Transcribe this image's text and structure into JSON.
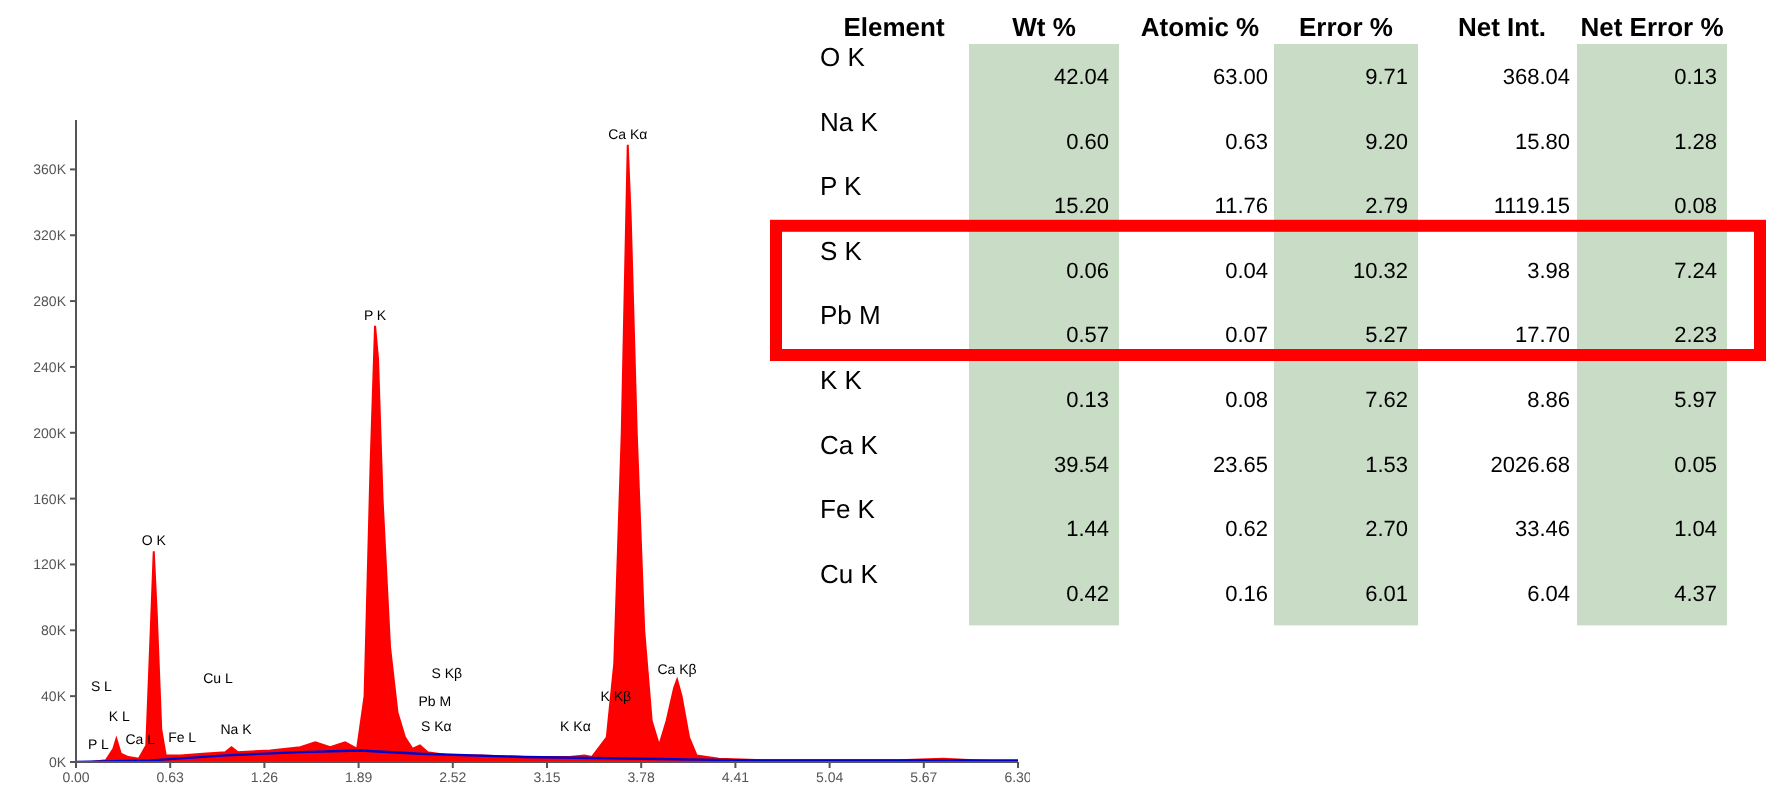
{
  "chart_data": [
    {
      "type": "area",
      "x": [
        0,
        0.1,
        0.2,
        0.25,
        0.27,
        0.3,
        0.35,
        0.42,
        0.47,
        0.5,
        0.52,
        0.54,
        0.57,
        0.6,
        0.7,
        0.85,
        1.0,
        1.04,
        1.08,
        1.3,
        1.5,
        1.6,
        1.7,
        1.8,
        1.88,
        1.93,
        1.97,
        2.0,
        2.02,
        2.05,
        2.1,
        2.15,
        2.2,
        2.25,
        2.3,
        2.35,
        2.5,
        2.7,
        3.0,
        3.3,
        3.4,
        3.45,
        3.55,
        3.6,
        3.65,
        3.69,
        3.71,
        3.75,
        3.8,
        3.85,
        3.9,
        3.95,
        4.0,
        4.02,
        4.05,
        4.1,
        4.15,
        4.3,
        4.6,
        5.0,
        5.5,
        5.8,
        6.0,
        6.3
      ],
      "series": [
        {
          "type": "area",
          "color": "#ff0000",
          "values": [
            0,
            0,
            1000,
            8000,
            14000,
            5000,
            3000,
            2000,
            10000,
            80000,
            128000,
            90000,
            20000,
            4000,
            4000,
            5000,
            6000,
            9000,
            6000,
            7000,
            9000,
            12000,
            9000,
            12000,
            8000,
            40000,
            180000,
            265000,
            245000,
            160000,
            70000,
            30000,
            15000,
            8000,
            10000,
            6000,
            4000,
            4000,
            3000,
            3000,
            4000,
            3000,
            15000,
            60000,
            200000,
            375000,
            330000,
            200000,
            80000,
            25000,
            10000,
            25000,
            45000,
            50000,
            40000,
            15000,
            4000,
            2000,
            1000,
            1000,
            1000,
            2000,
            1000,
            0
          ]
        },
        {
          "type": "line",
          "color": "#0000cc",
          "x": [
            0,
            0.5,
            1.0,
            1.5,
            1.9,
            2.3,
            3.0,
            3.8,
            4.5,
            6.3
          ],
          "values": [
            0,
            1000,
            4000,
            6000,
            7000,
            5000,
            3000,
            2000,
            1000,
            1000
          ]
        }
      ],
      "xlim": [
        0,
        6.3
      ],
      "xticks": [
        {
          "value": 0,
          "label": "0.00"
        },
        {
          "value": 0.63,
          "label": "0.63"
        },
        {
          "value": 1.26,
          "label": "1.26"
        },
        {
          "value": 1.89,
          "label": "1.89"
        },
        {
          "value": 2.52,
          "label": "2.52"
        },
        {
          "value": 3.15,
          "label": "3.15"
        },
        {
          "value": 3.78,
          "label": "3.78"
        },
        {
          "value": 4.41,
          "label": "4.41"
        },
        {
          "value": 5.04,
          "label": "5.04"
        },
        {
          "value": 5.67,
          "label": "5.67"
        },
        {
          "value": 6.3,
          "label": "6.30"
        }
      ],
      "ylim": [
        0,
        390000
      ],
      "yticks": [
        {
          "value": 0,
          "label": "0K"
        },
        {
          "value": 40000,
          "label": "40K"
        },
        {
          "value": 80000,
          "label": "80K"
        },
        {
          "value": 120000,
          "label": "120K"
        },
        {
          "value": 160000,
          "label": "160K"
        },
        {
          "value": 200000,
          "label": "200K"
        },
        {
          "value": 240000,
          "label": "240K"
        },
        {
          "value": 280000,
          "label": "280K"
        },
        {
          "value": 320000,
          "label": "320K"
        },
        {
          "value": 360000,
          "label": "360K"
        }
      ],
      "grid": false,
      "annotations": [
        {
          "text": "O K",
          "x": 0.52,
          "y": 128000
        },
        {
          "text": "P K",
          "x": 2.0,
          "y": 265000
        },
        {
          "text": "Ca Kα",
          "x": 3.69,
          "y": 375000
        },
        {
          "text": "Ca Kβ",
          "x": 4.02,
          "y": 50000
        },
        "S L",
        "K L",
        "P L",
        "Ca L",
        "Fe L",
        "Na K",
        "Cu L",
        "S Kβ",
        "Pb M",
        "S Kα",
        "K Kα",
        "K Kβ"
      ]
    },
    {
      "type": "heatmap",
      "ylabel": "Element",
      "categories": [
        "Wt %",
        "Atomic %",
        "Error %",
        "Net Int.",
        "Net Error %"
      ],
      "y_categories": [
        "O K",
        "Na K",
        "P K",
        "S K",
        "Pb M",
        "K K",
        "Ca K",
        "Fe K",
        "Cu K"
      ],
      "colors": [
        "#c9dcc6",
        "#ffffff",
        "#c9dcc6",
        "#ffffff",
        "#c9dcc6"
      ],
      "cells": [
        [
          42.04,
          63.0,
          9.71,
          368.04,
          0.13
        ],
        [
          0.6,
          0.63,
          9.2,
          15.8,
          1.28
        ],
        [
          15.2,
          11.76,
          2.79,
          1119.15,
          0.08
        ],
        [
          0.06,
          0.04,
          10.32,
          3.98,
          7.24
        ],
        [
          0.57,
          0.07,
          5.27,
          17.7,
          2.23
        ],
        [
          0.13,
          0.08,
          7.62,
          8.86,
          5.97
        ],
        [
          39.54,
          23.65,
          1.53,
          2026.68,
          0.05
        ],
        [
          1.44,
          0.62,
          2.7,
          33.46,
          1.04
        ],
        [
          0.42,
          0.16,
          6.01,
          6.04,
          4.37
        ]
      ],
      "cell_labels": [
        [
          "42.04",
          "63.00",
          "9.71",
          "368.04",
          "0.13"
        ],
        [
          "0.60",
          "0.63",
          "9.20",
          "15.80",
          "1.28"
        ],
        [
          "15.20",
          "11.76",
          "2.79",
          "1119.15",
          "0.08"
        ],
        [
          "0.06",
          "0.04",
          "10.32",
          "3.98",
          "7.24"
        ],
        [
          "0.57",
          "0.07",
          "5.27",
          "17.70",
          "2.23"
        ],
        [
          "0.13",
          "0.08",
          "7.62",
          "8.86",
          "5.97"
        ],
        [
          "39.54",
          "23.65",
          "1.53",
          "2026.68",
          "0.05"
        ],
        [
          "1.44",
          "0.62",
          "2.70",
          "33.46",
          "1.04"
        ],
        [
          "0.42",
          "0.16",
          "6.01",
          "6.04",
          "4.37"
        ]
      ],
      "data_labels": true
    }
  ]
}
